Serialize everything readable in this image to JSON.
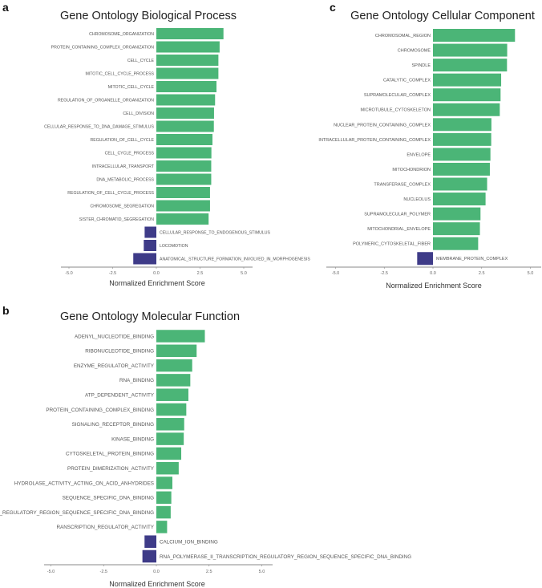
{
  "colors": {
    "positive": "#4bb577",
    "negative": "#3e3b88",
    "axis": "#888888"
  },
  "chart_data": [
    {
      "type": "bar",
      "orientation": "horizontal",
      "panel": "a",
      "title": "Gene Ontology Biological Process",
      "xlabel": "Normalized Enrichment Score",
      "ylabel": "",
      "xlim": [
        -5.0,
        5.0
      ],
      "xticks": [
        "-5.0",
        "-2.5",
        "0.0",
        "2.5",
        "5.0"
      ],
      "grid": false,
      "categories": [
        "CHROMOSOME_ORGANIZATION",
        "PROTEIN_CONTAINING_COMPLEX_ORGANIZATION",
        "CELL_CYCLE",
        "MITOTIC_CELL_CYCLE_PROCESS",
        "MITOTIC_CELL_CYCLE",
        "REGULATION_OF_ORGANELLE_ORGANIZATION",
        "CELL_DIVISION",
        "CELLULAR_RESPONSE_TO_DNA_DAMAGE_STIMULUS",
        "REGULATION_OF_CELL_CYCLE",
        "CELL_CYCLE_PROCESS",
        "INTRACELLULAR_TRANSPORT",
        "DNA_METABOLIC_PROCESS",
        "REGULATION_OF_CELL_CYCLE_PROCESS",
        "CHROMOSOME_SEGREGATION",
        "SISTER_CHROMATID_SEGREGATION",
        "CELLULAR_RESPONSE_TO_ENDOGENOUS_STIMULUS",
        "LOCOMOTION",
        "ANATOMICAL_STRUCTURE_FORMATION_INVOLVED_IN_MORPHOGENESIS"
      ],
      "values": [
        3.84,
        3.62,
        3.55,
        3.55,
        3.44,
        3.36,
        3.3,
        3.29,
        3.21,
        3.15,
        3.14,
        3.14,
        3.07,
        3.07,
        2.99,
        -0.67,
        -0.72,
        -1.32
      ]
    },
    {
      "type": "bar",
      "orientation": "horizontal",
      "panel": "b",
      "title": "Gene Ontology Molecular Function",
      "xlabel": "Normalized Enrichment Score",
      "ylabel": "",
      "xlim": [
        -5.0,
        5.0
      ],
      "xticks": [
        "-5.0",
        "-2.5",
        "0.0",
        "2.5",
        "5.0"
      ],
      "grid": false,
      "categories": [
        "ADENYL_NUCLEOTIDE_BINDING",
        "RIBONUCLEOTIDE_BINDING",
        "ENZYME_REGULATOR_ACTIVITY",
        "RNA_BINDING",
        "ATP_DEPENDENT_ACTIVITY",
        "PROTEIN_CONTAINING_COMPLEX_BINDING",
        "SIGNALING_RECEPTOR_BINDING",
        "KINASE_BINDING",
        "CYTOSKELETAL_PROTEIN_BINDING",
        "PROTEIN_DIMERIZATION_ACTIVITY",
        "HYDROLASE_ACTIVITY_ACTING_ON_ACID_ANHYDRIDES",
        "SEQUENCE_SPECIFIC_DNA_BINDING",
        "CIS_REGULATORY_REGION_SEQUENCE_SPECIFIC_DNA_BINDING",
        "RANSCRIPTION_REGULATOR_ACTIVITY",
        "CALCIUM_ION_BINDING",
        "RNA_POLYMERASE_II_TRANSCRIPTION_REGULATORY_REGION_SEQUENCE_SPECIFIC_DNA_BINDING"
      ],
      "values": [
        2.3,
        1.91,
        1.7,
        1.61,
        1.52,
        1.42,
        1.32,
        1.3,
        1.18,
        1.06,
        0.76,
        0.71,
        0.68,
        0.51,
        -0.56,
        -0.66
      ]
    },
    {
      "type": "bar",
      "orientation": "horizontal",
      "panel": "c",
      "title": "Gene Ontology Cellular Component",
      "xlabel": "Normalized Enrichment Score",
      "ylabel": "",
      "xlim": [
        -5.0,
        5.0
      ],
      "xticks": [
        "-5.0",
        "-2.5",
        "0.0",
        "2.5",
        "5.0"
      ],
      "grid": false,
      "categories": [
        "CHROMOSOMAL_REGION",
        "CHROMOSOME",
        "SPINDLE",
        "CATALYTIC_COMPLEX",
        "SUPRAMOLECULAR_COMPLEX",
        "MICROTUBULE_CYTOSKELETON",
        "NUCLEAR_PROTEIN_CONTAINING_COMPLEX",
        "INTRACELLULAR_PROTEIN_CONTAINING_COMPLEX",
        "ENVELOPE",
        "MITOCHONDRION",
        "TRANSFERASE_COMPLEX",
        "NUCLEOLUS",
        "SUPRAMOLECULAR_POLYMER",
        "MITOCHONDRIAL_ENVELOPE",
        "POLYMERIC_CYTOSKELETAL_FIBER",
        "MEMBRANE_PROTEIN_COMPLEX"
      ],
      "values": [
        4.21,
        3.81,
        3.8,
        3.5,
        3.47,
        3.43,
        3.0,
        2.99,
        2.95,
        2.92,
        2.78,
        2.7,
        2.44,
        2.41,
        2.32,
        -0.81
      ]
    }
  ]
}
